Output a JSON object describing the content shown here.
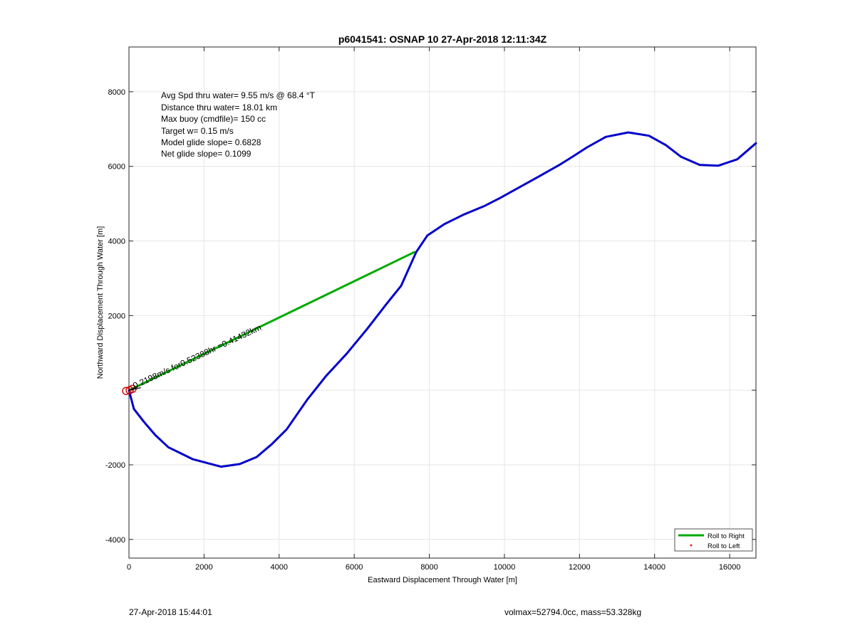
{
  "chart_data": {
    "type": "line",
    "title": "p6041541: OSNAP 10 27-Apr-2018 12:11:34Z",
    "xlabel": "Eastward Displacement Through Water [m]",
    "ylabel": "Northward Displacement Through Water [m]",
    "xlim": [
      0,
      16700
    ],
    "ylim": [
      -4500,
      9200
    ],
    "x_ticks": [
      0,
      2000,
      4000,
      6000,
      8000,
      10000,
      12000,
      14000,
      16000
    ],
    "y_ticks": [
      -4000,
      -2000,
      2000,
      4000,
      6000,
      8000
    ],
    "x_tick_labels": [
      "0",
      "2000",
      "4000",
      "6000",
      "8000",
      "10000",
      "12000",
      "14000",
      "16000"
    ],
    "y_tick_labels": [
      "-4000",
      "-2000",
      "2000",
      "4000",
      "6000",
      "8000"
    ],
    "grid": true,
    "series": [
      {
        "name": "",
        "color": "#0000cc",
        "points": [
          [
            0,
            0
          ],
          [
            130,
            -500
          ],
          [
            400,
            -850
          ],
          [
            700,
            -1200
          ],
          [
            1050,
            -1530
          ],
          [
            1700,
            -1850
          ],
          [
            2450,
            -2050
          ],
          [
            2950,
            -1980
          ],
          [
            3400,
            -1790
          ],
          [
            3800,
            -1450
          ],
          [
            4200,
            -1050
          ],
          [
            4750,
            -250
          ],
          [
            5250,
            380
          ],
          [
            5800,
            980
          ],
          [
            6350,
            1650
          ],
          [
            6850,
            2300
          ],
          [
            7250,
            2800
          ],
          [
            7650,
            3700
          ],
          [
            7950,
            4150
          ],
          [
            8400,
            4450
          ],
          [
            8900,
            4700
          ],
          [
            9450,
            4930
          ],
          [
            9900,
            5160
          ],
          [
            10400,
            5440
          ],
          [
            10900,
            5720
          ],
          [
            11450,
            6030
          ],
          [
            11800,
            6250
          ],
          [
            12200,
            6510
          ],
          [
            12700,
            6790
          ],
          [
            13300,
            6910
          ],
          [
            13850,
            6820
          ],
          [
            14300,
            6570
          ],
          [
            14700,
            6260
          ],
          [
            15200,
            6040
          ],
          [
            15700,
            6020
          ],
          [
            16200,
            6190
          ],
          [
            16700,
            6620
          ]
        ]
      },
      {
        "name": "Roll to Right",
        "color": "#00aa00",
        "points": [
          [
            0,
            0
          ],
          [
            7600,
            3700
          ]
        ]
      },
      {
        "name": "Roll to Left",
        "color": "#ff0000",
        "marker": "dot",
        "points": []
      }
    ],
    "legend": {
      "placement": "bottom-right",
      "entries": [
        {
          "label": "Roll to Right",
          "color": "#00aa00",
          "style": "line"
        },
        {
          "label": "Roll to Left",
          "color": "#ff0000",
          "style": "dot"
        }
      ]
    },
    "annotations": {
      "stats": [
        "Avg Spd thru water=  9.55 m/s @  68.4 °T",
        "Distance thru water= 18.01 km",
        "Max buoy (cmdfile)= 150 cc",
        "Target w= 0.15 m/s",
        "Model glide slope= 0.6828",
        "Net glide slope= 0.1099"
      ],
      "current_label": "0.2198m/s for0.52388hr =0.41432km",
      "current_label_rotation_deg": -25
    }
  },
  "footer": {
    "timestamp": "27-Apr-2018 15:44:01",
    "vol_mass": "volmax=52794.0cc, mass=53.328kg"
  }
}
